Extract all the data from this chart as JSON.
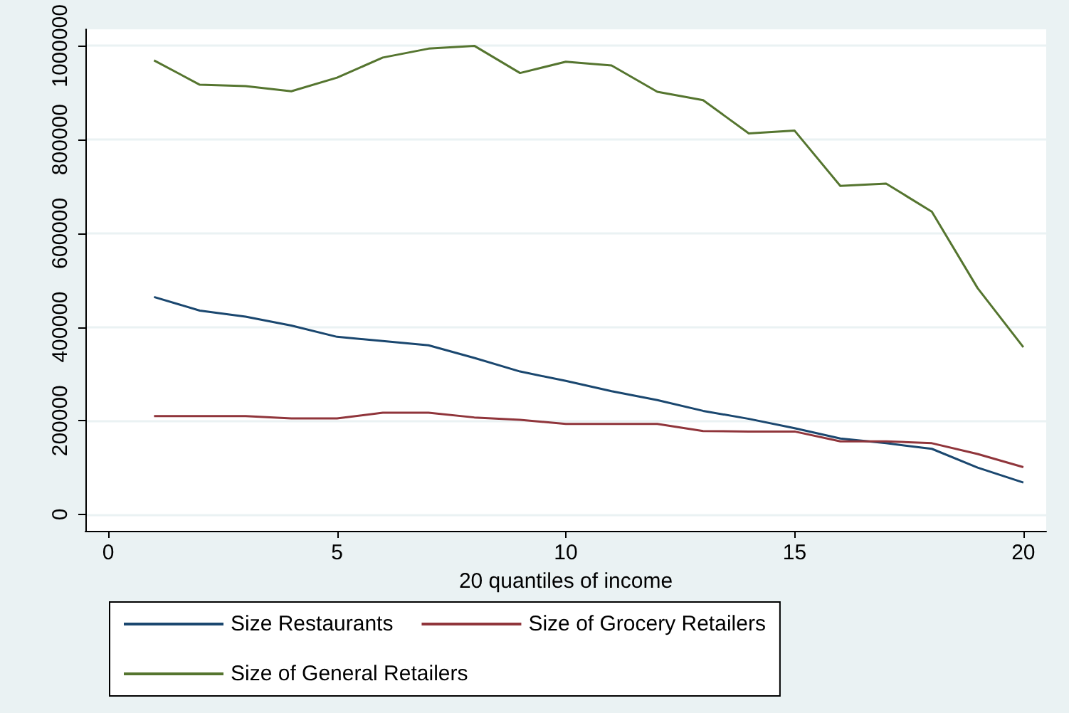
{
  "chart_data": {
    "type": "line",
    "xlabel": "20 quantiles of income",
    "x": [
      1,
      2,
      3,
      4,
      5,
      6,
      7,
      8,
      9,
      10,
      11,
      12,
      13,
      14,
      15,
      16,
      17,
      18,
      19,
      20
    ],
    "series": [
      {
        "name": "Size Restaurants",
        "color": "#1a476f",
        "values": [
          464000,
          435000,
          422000,
          403000,
          379000,
          370000,
          361000,
          334000,
          305000,
          285000,
          263000,
          244000,
          221000,
          204000,
          184000,
          162000,
          152000,
          140000,
          100000,
          68000
        ]
      },
      {
        "name": "Size of Grocery Retailers",
        "color": "#90353b",
        "values": [
          210000,
          210000,
          210000,
          205000,
          205000,
          217000,
          217000,
          207000,
          202000,
          193000,
          193000,
          193000,
          178000,
          177000,
          177000,
          156000,
          156000,
          152000,
          129000,
          101000
        ]
      },
      {
        "name": "Size of General Retailers",
        "color": "#55752f",
        "values": [
          969000,
          917000,
          914000,
          903000,
          932000,
          975000,
          994000,
          1000000,
          942000,
          966000,
          958000,
          902000,
          884000,
          813000,
          819000,
          701000,
          706000,
          646000,
          483000,
          357000
        ]
      }
    ],
    "xlim": [
      -0.5,
      20.5
    ],
    "xticks": [
      0,
      5,
      10,
      15,
      20
    ],
    "ylim": [
      -35000,
      1035000
    ],
    "yticks": [
      0,
      200000,
      400000,
      600000,
      800000,
      1000000
    ],
    "grid": "y",
    "legend": "bottom",
    "marker": "none",
    "line_style": "solid"
  }
}
